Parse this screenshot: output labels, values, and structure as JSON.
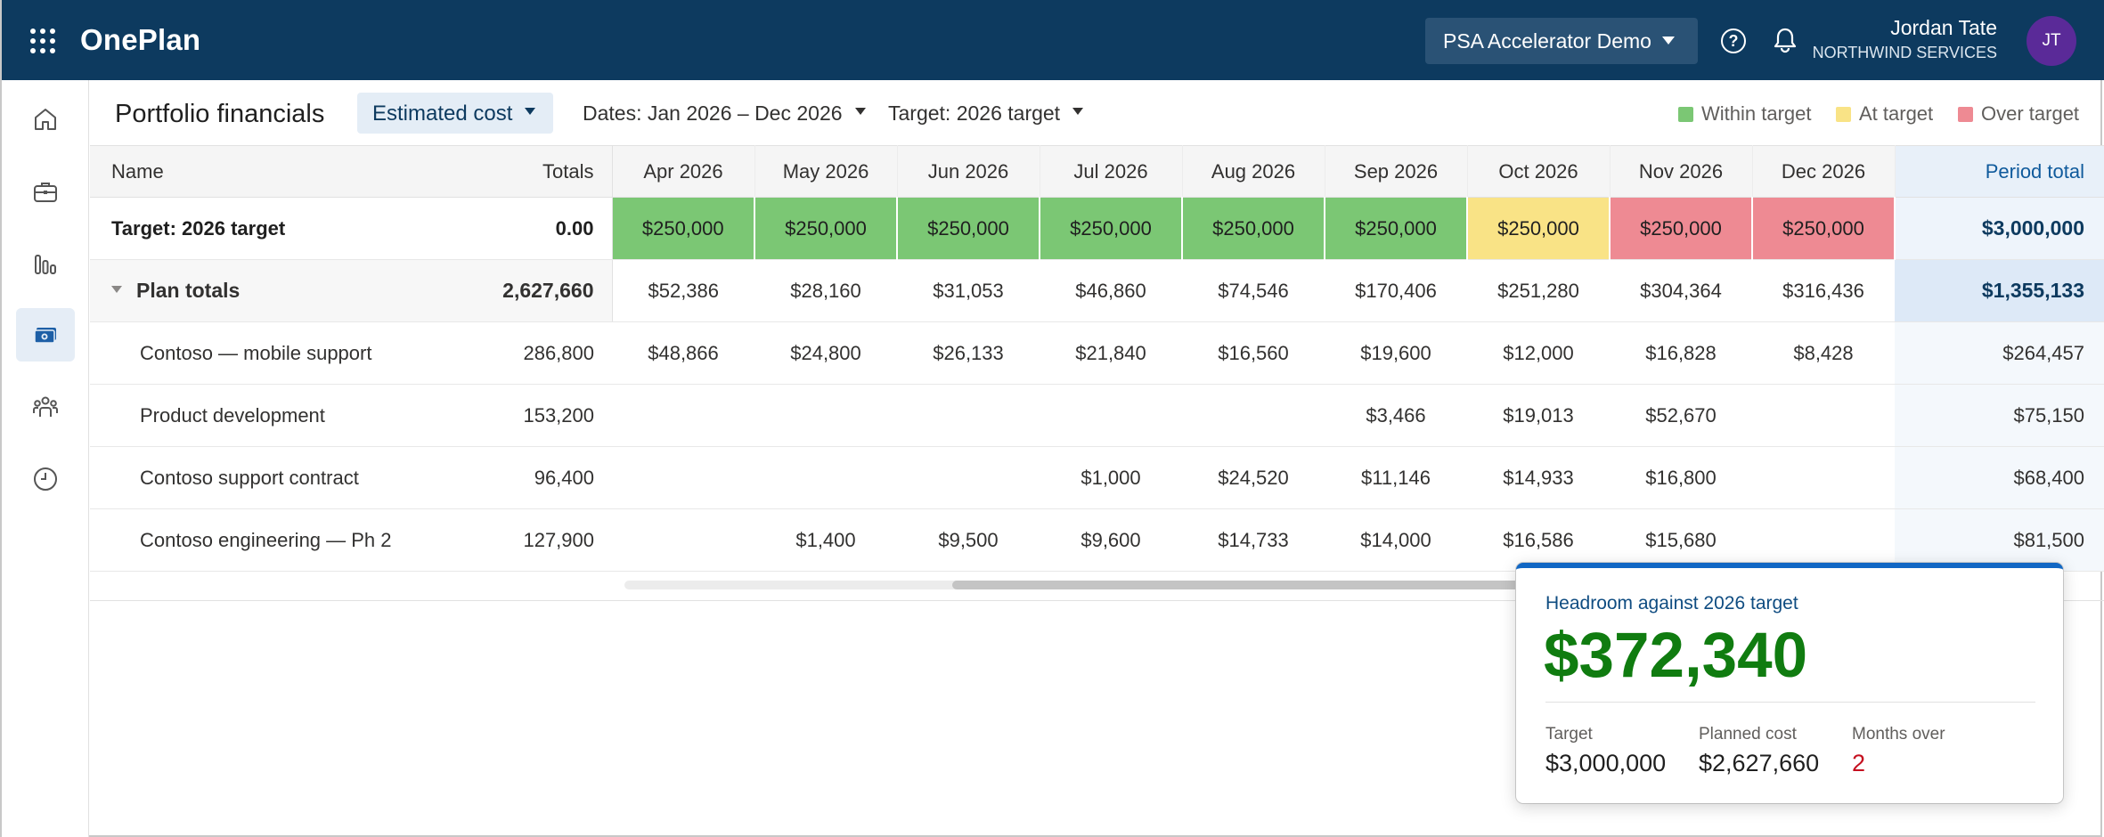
{
  "app": {
    "name": "OnePlan"
  },
  "header": {
    "environment": "PSA Accelerator Demo",
    "user_name": "Jordan Tate",
    "user_org": "NORTHWIND SERVICES",
    "avatar_initials": "JT",
    "help_glyph": "?"
  },
  "rail": {
    "items": [
      {
        "icon": "home-icon",
        "active": false
      },
      {
        "icon": "briefcase-icon",
        "active": false
      },
      {
        "icon": "bar-chart-icon",
        "active": false
      },
      {
        "icon": "money-icon",
        "active": true
      },
      {
        "icon": "people-icon",
        "active": false
      },
      {
        "icon": "clock-icon",
        "active": false
      }
    ]
  },
  "toolbar": {
    "title": "Portfolio financials",
    "view_selector": "Estimated cost",
    "dates_filter": "Dates: Jan 2026 – Dec 2026",
    "target_filter": "Target: 2026 target"
  },
  "legend": {
    "within": {
      "label": "Within target",
      "color": "#7bc774"
    },
    "at": {
      "label": "At target",
      "color": "#f9e386"
    },
    "over": {
      "label": "Over target",
      "color": "#ee8a93"
    }
  },
  "grid": {
    "headers": {
      "name": "Name",
      "totals": "Totals",
      "months": [
        "Apr 2026",
        "May 2026",
        "Jun 2026",
        "Jul 2026",
        "Aug 2026",
        "Sep 2026",
        "Oct 2026",
        "Nov 2026",
        "Dec 2026"
      ],
      "period_total": "Period total"
    },
    "target_row": {
      "name": "Target: 2026 target",
      "total": "0.00",
      "months": [
        "$250,000",
        "$250,000",
        "$250,000",
        "$250,000",
        "$250,000",
        "$250,000",
        "$250,000",
        "$250,000",
        "$250,000"
      ],
      "status": [
        "within",
        "within",
        "within",
        "within",
        "within",
        "within",
        "at",
        "over",
        "over"
      ],
      "period_total": "$3,000,000"
    },
    "plan_row": {
      "name": "Plan totals",
      "total": "2,627,660",
      "months": [
        "$52,386",
        "$28,160",
        "$31,053",
        "$46,860",
        "$74,546",
        "$170,406",
        "$251,280",
        "$304,364",
        "$316,436"
      ],
      "period_total": "$1,355,133"
    },
    "rows": [
      {
        "name": "Contoso — mobile support",
        "total": "286,800",
        "months": [
          "$48,866",
          "$24,800",
          "$26,133",
          "$21,840",
          "$16,560",
          "$19,600",
          "$12,000",
          "$16,828",
          "$8,428"
        ],
        "period_total": "$264,457"
      },
      {
        "name": "Product development",
        "total": "153,200",
        "months": [
          "",
          "",
          "",
          "",
          "",
          "$3,466",
          "$19,013",
          "$52,670",
          ""
        ],
        "period_total": "$75,150"
      },
      {
        "name": "Contoso support contract",
        "total": "96,400",
        "months": [
          "",
          "",
          "",
          "$1,000",
          "$24,520",
          "$11,146",
          "$14,933",
          "$16,800",
          ""
        ],
        "period_total": "$68,400"
      },
      {
        "name": "Contoso engineering — Ph 2",
        "total": "127,900",
        "months": [
          "",
          "$1,400",
          "$9,500",
          "$9,600",
          "$14,733",
          "$14,000",
          "$16,586",
          "$15,680",
          ""
        ],
        "period_total": "$81,500"
      }
    ]
  },
  "scroll": {
    "position": 0.23,
    "visible_fraction": 0.41
  },
  "headroom_card": {
    "title": "Headroom against 2026 target",
    "value": "$372,340",
    "stats": [
      {
        "label": "Target",
        "value": "$3,000,000"
      },
      {
        "label": "Planned cost",
        "value": "$2,627,660"
      },
      {
        "label": "Months over",
        "value": "2"
      }
    ]
  }
}
